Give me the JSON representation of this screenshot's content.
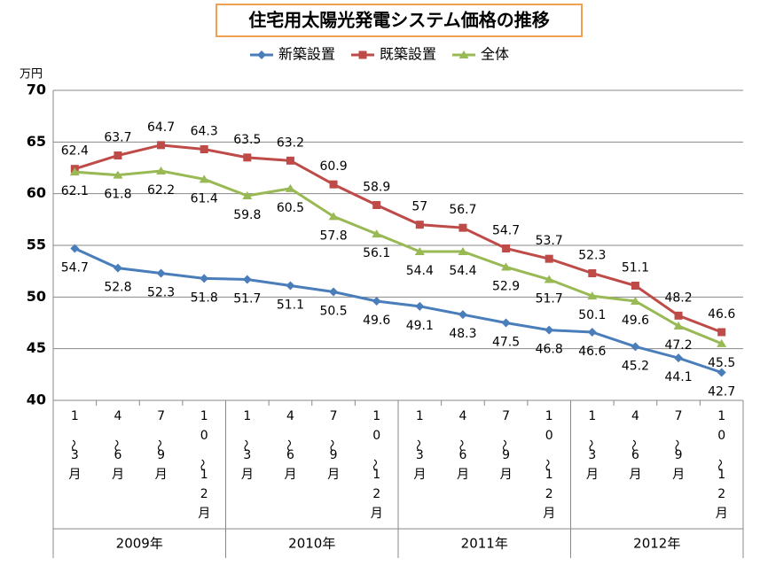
{
  "chart_data": {
    "type": "line",
    "title": "住宅用太陽光発電システム価格の推移",
    "y_label": "万円",
    "categories": [
      "1～3月",
      "4～6月",
      "7～9月",
      "10～12月",
      "1～3月",
      "4～6月",
      "7～9月",
      "10～12月",
      "1～3月",
      "4～6月",
      "7～9月",
      "10～12月",
      "1～3月",
      "4～6月",
      "7～9月",
      "10～12月"
    ],
    "groups": [
      "2009年",
      "2010年",
      "2011年",
      "2012年"
    ],
    "series": [
      {
        "name": "新築設置",
        "color": "#4a7ebb",
        "marker": "diamond",
        "values": [
          54.7,
          52.8,
          52.3,
          51.8,
          51.7,
          51.1,
          50.5,
          49.6,
          49.1,
          48.3,
          47.5,
          46.8,
          46.6,
          45.2,
          44.1,
          42.7
        ]
      },
      {
        "name": "既築設置",
        "color": "#be4b48",
        "marker": "square",
        "values": [
          62.4,
          63.7,
          64.7,
          64.3,
          63.5,
          63.2,
          60.9,
          58.9,
          57,
          56.7,
          54.7,
          53.7,
          52.3,
          51.1,
          48.2,
          46.6
        ]
      },
      {
        "name": "全体",
        "color": "#98b954",
        "marker": "triangle",
        "values": [
          62.1,
          61.8,
          62.2,
          61.4,
          59.8,
          60.5,
          57.8,
          56.1,
          54.4,
          54.4,
          52.9,
          51.7,
          50.1,
          49.6,
          47.2,
          45.5
        ]
      }
    ],
    "ylim": [
      40,
      70
    ],
    "yticks": [
      40,
      45,
      50,
      55,
      60,
      65,
      70
    ],
    "grid": true
  }
}
